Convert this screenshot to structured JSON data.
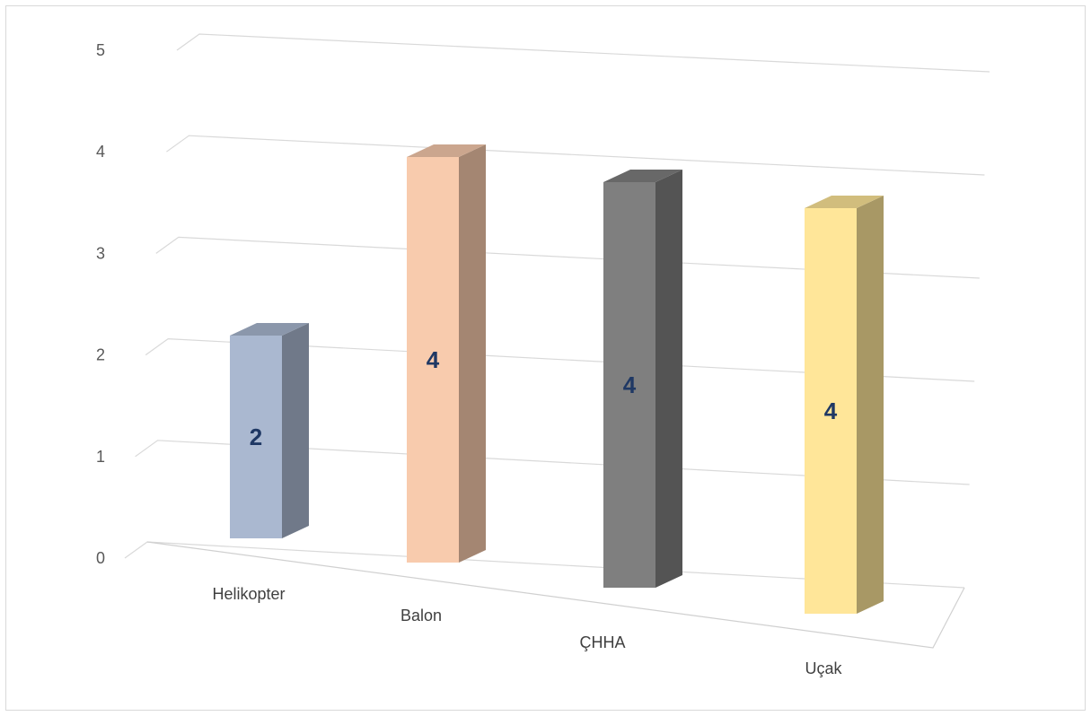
{
  "chart_data": {
    "type": "bar",
    "style": "3d-column",
    "categories": [
      "Helikopter",
      "Balon",
      "ÇHHA",
      "Uçak"
    ],
    "values": [
      2,
      4,
      4,
      4
    ],
    "data_labels": [
      "2",
      "4",
      "4",
      "4"
    ],
    "y_ticks": [
      "0",
      "1",
      "2",
      "3",
      "4",
      "5"
    ],
    "ylim": [
      0,
      5
    ],
    "grid": true,
    "legend": "none",
    "colors": [
      "#aab8d0",
      "#f8cbad",
      "#7f7f7f",
      "#ffe699"
    ]
  }
}
